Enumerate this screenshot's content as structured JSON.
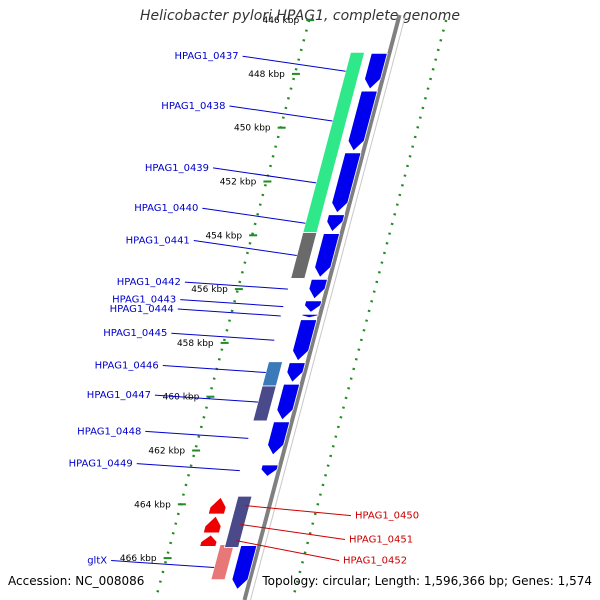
{
  "title": "Helicobacter pylori HPAG1, complete genome",
  "footer": {
    "accession": "Accession: NC_008086",
    "topology": "Topology: circular; Length: 1,596,366 bp; Genes: 1,574"
  },
  "colors": {
    "forward_gene": "#0000ee",
    "reverse_gene": "#ee0000",
    "forward_label": "#0000cc",
    "reverse_label": "#cc0000",
    "backbone": "#808080",
    "gc_skew": "#228b22"
  },
  "scale": {
    "unit": "kbp",
    "labels": [
      "446 kbp",
      "448 kbp",
      "450 kbp",
      "452 kbp",
      "454 kbp",
      "456 kbp",
      "458 kbp",
      "460 kbp",
      "462 kbp",
      "464 kbp",
      "466 kbp"
    ]
  },
  "genes_forward": [
    {
      "name": "HPAG1_0437",
      "start": 447.2,
      "end": 448.6
    },
    {
      "name": "HPAG1_0438",
      "start": 448.6,
      "end": 450.9
    },
    {
      "name": "HPAG1_0439",
      "start": 450.9,
      "end": 453.2
    },
    {
      "name": "HPAG1_0440",
      "start": 453.2,
      "end": 453.9
    },
    {
      "name": "HPAG1_0441",
      "start": 453.9,
      "end": 455.6
    },
    {
      "name": "HPAG1_0442",
      "start": 455.6,
      "end": 456.4
    },
    {
      "name": "HPAG1_0443",
      "start": 456.4,
      "end": 456.9
    },
    {
      "name": "HPAG1_0444",
      "start": 456.9,
      "end": 457.1
    },
    {
      "name": "HPAG1_0445",
      "start": 457.1,
      "end": 458.7
    },
    {
      "name": "HPAG1_0446",
      "start": 458.7,
      "end": 459.5
    },
    {
      "name": "HPAG1_0447",
      "start": 459.5,
      "end": 460.9
    },
    {
      "name": "HPAG1_0448",
      "start": 460.9,
      "end": 462.2
    },
    {
      "name": "HPAG1_0449",
      "start": 462.5,
      "end": 463.0
    },
    {
      "name": "gltX",
      "start": 465.5,
      "end": 467.2
    }
  ],
  "genes_reverse": [
    {
      "name": "HPAG1_0450",
      "start": 463.7,
      "end": 464.4
    },
    {
      "name": "HPAG1_0451",
      "start": 464.4,
      "end": 465.1
    },
    {
      "name": "HPAG1_0452",
      "start": 465.1,
      "end": 465.6
    }
  ],
  "cds_features": [
    {
      "start": 447.2,
      "end": 453.9,
      "color": "#2ee88a"
    },
    {
      "start": 453.9,
      "end": 455.6,
      "color": "#6a6a6a"
    },
    {
      "start": 458.7,
      "end": 459.6,
      "color": "#3a7ab8"
    },
    {
      "start": 459.6,
      "end": 460.9,
      "color": "#4a4a8a"
    },
    {
      "start": 465.5,
      "end": 466.8,
      "color": "#e87878"
    },
    {
      "start": 463.7,
      "end": 465.6,
      "color": "#4a4a8a"
    }
  ]
}
